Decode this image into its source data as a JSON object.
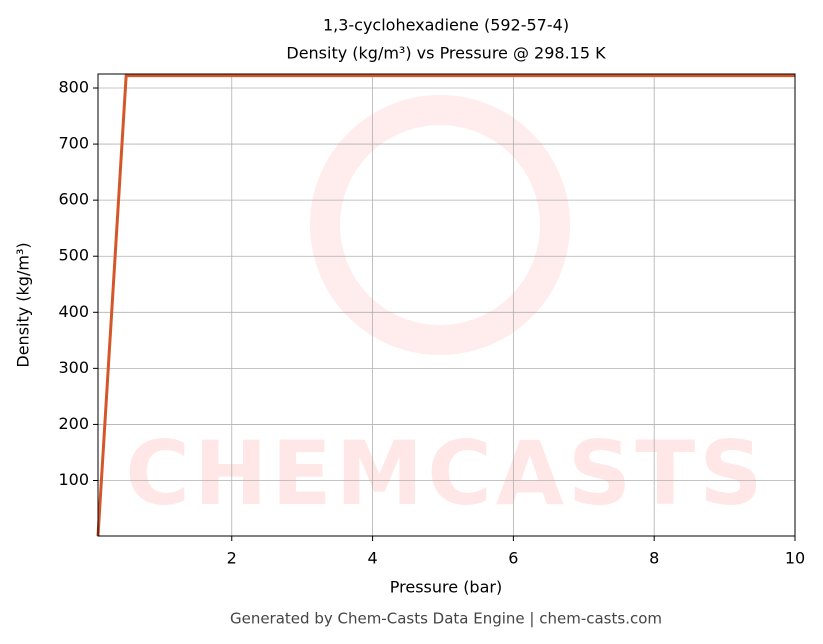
{
  "chart_data": {
    "type": "line",
    "title": "1,3-cyclohexadiene (592-57-4)",
    "subtitle": "Density (kg/m³) vs Pressure @ 298.15 K",
    "x_label": "Pressure (bar)",
    "y_label": "Density (kg/m³)",
    "caption": "Generated by Chem-Casts Data Engine | chem-casts.com",
    "watermark": "CHEMCASTS",
    "x": [
      0.1,
      0.5,
      10
    ],
    "series": [
      {
        "name": "Density",
        "color": "#d4572a",
        "values": [
          1,
          822,
          822
        ]
      }
    ],
    "xlim": [
      0.1,
      10
    ],
    "xticks": [
      2,
      4,
      6,
      8,
      10
    ],
    "ylim": [
      1,
      825
    ],
    "yticks": [
      100,
      200,
      300,
      400,
      500,
      600,
      700,
      800
    ],
    "grid": true
  }
}
